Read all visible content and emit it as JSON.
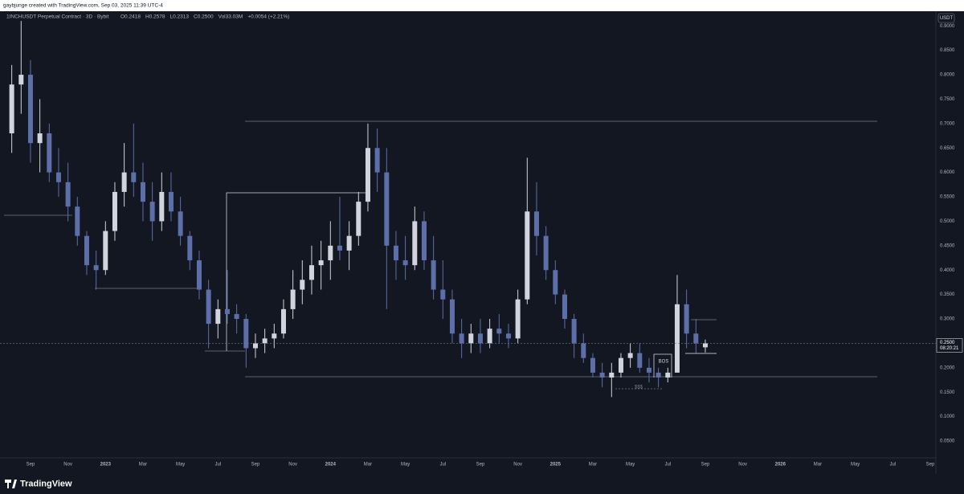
{
  "header": "gaybjunge created with TradingView.com, Sep 03, 2025 11:39 UTC-4",
  "footer": "TradingView",
  "chart_data": {
    "type": "candlestick",
    "title": "1INCHUSDT Perpetual Contract · 3D · Bybit",
    "ohlc_legend": [
      "O0.2418",
      "H0.2578",
      "L0.2313",
      "C0.2500",
      "Vol33.03M",
      "+0.0054 (+2.21%)"
    ],
    "currency": "USDT",
    "annotations": [
      "BOS",
      "$$$"
    ],
    "last_price": {
      "value": 0.25,
      "label": "0.2500"
    },
    "countdown": "08:20:21",
    "up_color": "#d1d4dc",
    "down_color": "#5c6fa8",
    "grid": false,
    "categories": [
      null,
      null,
      "Sep",
      null,
      null,
      null,
      "Nov",
      null,
      null,
      null,
      "2023",
      null,
      null,
      null,
      "Mar",
      null,
      null,
      null,
      "May",
      null,
      null,
      null,
      "Jul",
      null,
      null,
      null,
      "Sep",
      null,
      null,
      null,
      "Nov",
      null,
      null,
      null,
      "2024",
      null,
      null,
      null,
      "Mar",
      null,
      null,
      null,
      "May",
      null,
      null,
      null,
      "Jul",
      null,
      null,
      null,
      "Sep",
      null,
      null,
      null,
      "Nov",
      null,
      null,
      null,
      "2025",
      null,
      null,
      null,
      "Mar",
      null,
      null,
      null,
      "May",
      null,
      null,
      null,
      "Jul",
      null,
      null,
      null,
      "Sep",
      null,
      null,
      null,
      "Nov",
      null,
      null,
      null,
      "2026",
      null,
      null,
      null,
      "Mar",
      null,
      null,
      null,
      "May",
      null,
      null,
      null,
      "Jul",
      null,
      null,
      null,
      "Sep"
    ],
    "open": [
      0.68,
      0.78,
      0.8,
      0.66,
      0.68,
      0.6,
      0.58,
      0.53,
      0.47,
      0.41,
      0.4,
      0.48,
      0.56,
      0.6,
      0.58,
      0.54,
      0.5,
      0.56,
      0.52,
      0.47,
      0.42,
      0.36,
      0.29,
      0.32,
      0.31,
      0.3,
      0.24,
      0.25,
      0.26,
      0.27,
      0.32,
      0.36,
      0.38,
      0.41,
      0.42,
      0.45,
      0.44,
      0.47,
      0.54,
      0.65,
      0.6,
      0.45,
      0.42,
      0.41,
      0.5,
      0.42,
      0.36,
      0.34,
      0.27,
      0.25,
      0.27,
      0.25,
      0.28,
      0.27,
      0.26,
      0.34,
      0.52,
      0.47,
      0.4,
      0.35,
      0.3,
      0.25,
      0.22,
      0.19,
      0.18,
      0.19,
      0.22,
      0.23,
      0.2,
      0.19,
      0.18,
      0.19,
      0.33,
      0.27,
      0.2418,
      null,
      null,
      null,
      null,
      null,
      null,
      null,
      null,
      null,
      null,
      null,
      null,
      null,
      null,
      null,
      null,
      null,
      null,
      null,
      null,
      null,
      null,
      null,
      null
    ],
    "high": [
      0.82,
      0.91,
      0.83,
      0.75,
      0.7,
      0.65,
      0.62,
      0.55,
      0.48,
      0.44,
      0.5,
      0.58,
      0.66,
      0.7,
      0.62,
      0.58,
      0.6,
      0.6,
      0.55,
      0.48,
      0.44,
      0.38,
      0.34,
      0.4,
      0.33,
      0.31,
      0.27,
      0.28,
      0.29,
      0.34,
      0.4,
      0.42,
      0.45,
      0.46,
      0.5,
      0.55,
      0.5,
      0.56,
      0.7,
      0.69,
      0.65,
      0.48,
      0.47,
      0.53,
      0.52,
      0.47,
      0.42,
      0.36,
      0.3,
      0.29,
      0.3,
      0.3,
      0.31,
      0.29,
      0.36,
      0.63,
      0.58,
      0.49,
      0.42,
      0.36,
      0.31,
      0.27,
      0.23,
      0.21,
      0.21,
      0.23,
      0.25,
      0.25,
      0.22,
      0.2,
      0.2,
      0.39,
      0.36,
      0.3,
      0.2578,
      null,
      null,
      null,
      null,
      null,
      null,
      null,
      null,
      null,
      null,
      null,
      null,
      null,
      null,
      null,
      null,
      null,
      null,
      null,
      null,
      null,
      null,
      null,
      null
    ],
    "low": [
      0.64,
      0.72,
      0.62,
      0.6,
      0.58,
      0.55,
      0.5,
      0.45,
      0.39,
      0.36,
      0.39,
      0.46,
      0.53,
      0.55,
      0.5,
      0.46,
      0.48,
      0.5,
      0.45,
      0.4,
      0.34,
      0.24,
      0.26,
      0.29,
      0.27,
      0.2,
      0.22,
      0.23,
      0.24,
      0.26,
      0.3,
      0.33,
      0.35,
      0.36,
      0.38,
      0.42,
      0.4,
      0.45,
      0.52,
      0.56,
      0.32,
      0.38,
      0.38,
      0.4,
      0.4,
      0.34,
      0.3,
      0.25,
      0.22,
      0.23,
      0.23,
      0.24,
      0.25,
      0.24,
      0.25,
      0.33,
      0.43,
      0.38,
      0.33,
      0.28,
      0.22,
      0.21,
      0.18,
      0.16,
      0.14,
      0.18,
      0.2,
      0.19,
      0.17,
      0.16,
      0.17,
      0.19,
      0.24,
      0.23,
      0.2313,
      null,
      null,
      null,
      null,
      null,
      null,
      null,
      null,
      null,
      null,
      null,
      null,
      null,
      null,
      null,
      null,
      null,
      null,
      null,
      null,
      null,
      null,
      null,
      null
    ],
    "close": [
      0.78,
      0.8,
      0.66,
      0.68,
      0.6,
      0.58,
      0.53,
      0.47,
      0.41,
      0.4,
      0.48,
      0.56,
      0.6,
      0.58,
      0.54,
      0.5,
      0.56,
      0.52,
      0.47,
      0.42,
      0.36,
      0.29,
      0.32,
      0.31,
      0.3,
      0.24,
      0.25,
      0.26,
      0.27,
      0.32,
      0.36,
      0.38,
      0.41,
      0.42,
      0.45,
      0.44,
      0.47,
      0.54,
      0.65,
      0.6,
      0.45,
      0.42,
      0.41,
      0.5,
      0.42,
      0.36,
      0.34,
      0.27,
      0.25,
      0.27,
      0.25,
      0.28,
      0.27,
      0.26,
      0.34,
      0.52,
      0.47,
      0.4,
      0.35,
      0.3,
      0.25,
      0.22,
      0.19,
      0.18,
      0.19,
      0.22,
      0.23,
      0.2,
      0.19,
      0.18,
      0.19,
      0.33,
      0.27,
      0.25,
      0.25,
      null,
      null,
      null,
      null,
      null,
      null,
      null,
      null,
      null,
      null,
      null,
      null,
      null,
      null,
      null,
      null,
      null,
      null,
      null,
      null,
      null,
      null,
      null,
      null
    ],
    "ylim": [
      0.0155,
      0.93
    ],
    "yticks": [
      {
        "value": 0.05,
        "label": "0.0500"
      },
      {
        "value": 0.1,
        "label": "0.1000"
      },
      {
        "value": 0.15,
        "label": "0.1500"
      },
      {
        "value": 0.2,
        "label": "0.2000"
      },
      {
        "value": 0.25,
        "label": "0.2500"
      },
      {
        "value": 0.3,
        "label": "0.3000"
      },
      {
        "value": 0.35,
        "label": "0.3500"
      },
      {
        "value": 0.4,
        "label": "0.4000"
      },
      {
        "value": 0.45,
        "label": "0.4500"
      },
      {
        "value": 0.5,
        "label": "0.5000"
      },
      {
        "value": 0.55,
        "label": "0.5500"
      },
      {
        "value": 0.6,
        "label": "0.6000"
      },
      {
        "value": 0.65,
        "label": "0.6500"
      },
      {
        "value": 0.7,
        "label": "0.7000"
      },
      {
        "value": 0.75,
        "label": "0.7500"
      },
      {
        "value": 0.8,
        "label": "0.8000"
      },
      {
        "value": 0.85,
        "label": "0.8500"
      },
      {
        "value": 0.9,
        "label": "0.9000"
      }
    ]
  }
}
